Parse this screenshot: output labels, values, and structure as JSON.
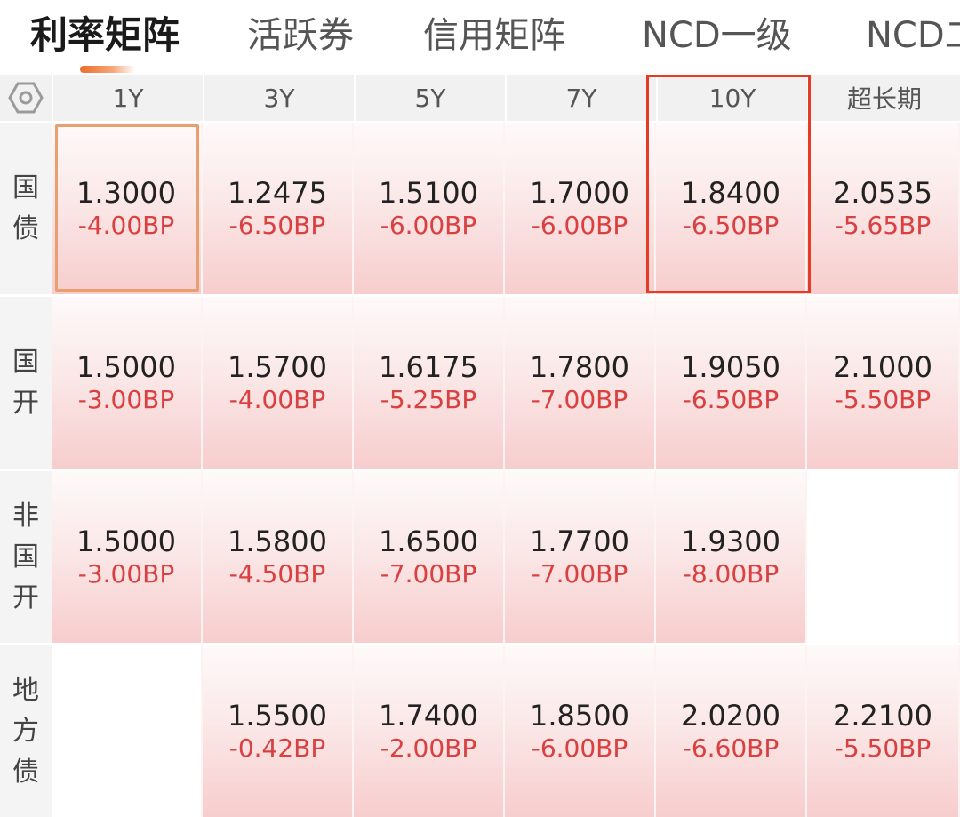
{
  "tabs": [
    "利率矩阵",
    "活跃券",
    "信用矩阵",
    "NCD一级",
    "NCD二"
  ],
  "columns": [
    "1Y",
    "3Y",
    "5Y",
    "7Y",
    "10Y",
    "超长期"
  ],
  "rows": [
    {
      "label": "国债",
      "label_chars": [
        "国",
        "债"
      ],
      "cells": [
        {
          "rate": "1.3000",
          "change": "-4.00BP"
        },
        {
          "rate": "1.2475",
          "change": "-6.50BP"
        },
        {
          "rate": "1.5100",
          "change": "-6.00BP"
        },
        {
          "rate": "1.7000",
          "change": "-6.00BP"
        },
        {
          "rate": "1.8400",
          "change": "-6.50BP"
        },
        {
          "rate": "2.0535",
          "change": "-5.65BP"
        }
      ]
    },
    {
      "label": "国开",
      "label_chars": [
        "国",
        "开"
      ],
      "cells": [
        {
          "rate": "1.5000",
          "change": "-3.00BP"
        },
        {
          "rate": "1.5700",
          "change": "-4.00BP"
        },
        {
          "rate": "1.6175",
          "change": "-5.25BP"
        },
        {
          "rate": "1.7800",
          "change": "-7.00BP"
        },
        {
          "rate": "1.9050",
          "change": "-6.50BP"
        },
        {
          "rate": "2.1000",
          "change": "-5.50BP"
        }
      ]
    },
    {
      "label": "非国开",
      "label_chars": [
        "非",
        "国",
        "开"
      ],
      "cells": [
        {
          "rate": "1.5000",
          "change": "-3.00BP"
        },
        {
          "rate": "1.5800",
          "change": "-4.50BP"
        },
        {
          "rate": "1.6500",
          "change": "-7.00BP"
        },
        {
          "rate": "1.7700",
          "change": "-7.00BP"
        },
        {
          "rate": "1.9300",
          "change": "-8.00BP"
        },
        null
      ]
    },
    {
      "label": "地方债",
      "label_chars": [
        "地",
        "方",
        "债"
      ],
      "cells": [
        null,
        {
          "rate": "1.5500",
          "change": "-0.42BP"
        },
        {
          "rate": "1.7400",
          "change": "-2.00BP"
        },
        {
          "rate": "1.8500",
          "change": "-6.00BP"
        },
        {
          "rate": "2.0200",
          "change": "-6.60BP"
        },
        {
          "rate": "2.2100",
          "change": "-5.50BP"
        }
      ]
    }
  ],
  "icons": {
    "settings": "settings-hexagon-icon"
  },
  "colors": {
    "accent": "#f06a2a",
    "negative": "#d94040",
    "highlight_border": "#e63b24"
  }
}
